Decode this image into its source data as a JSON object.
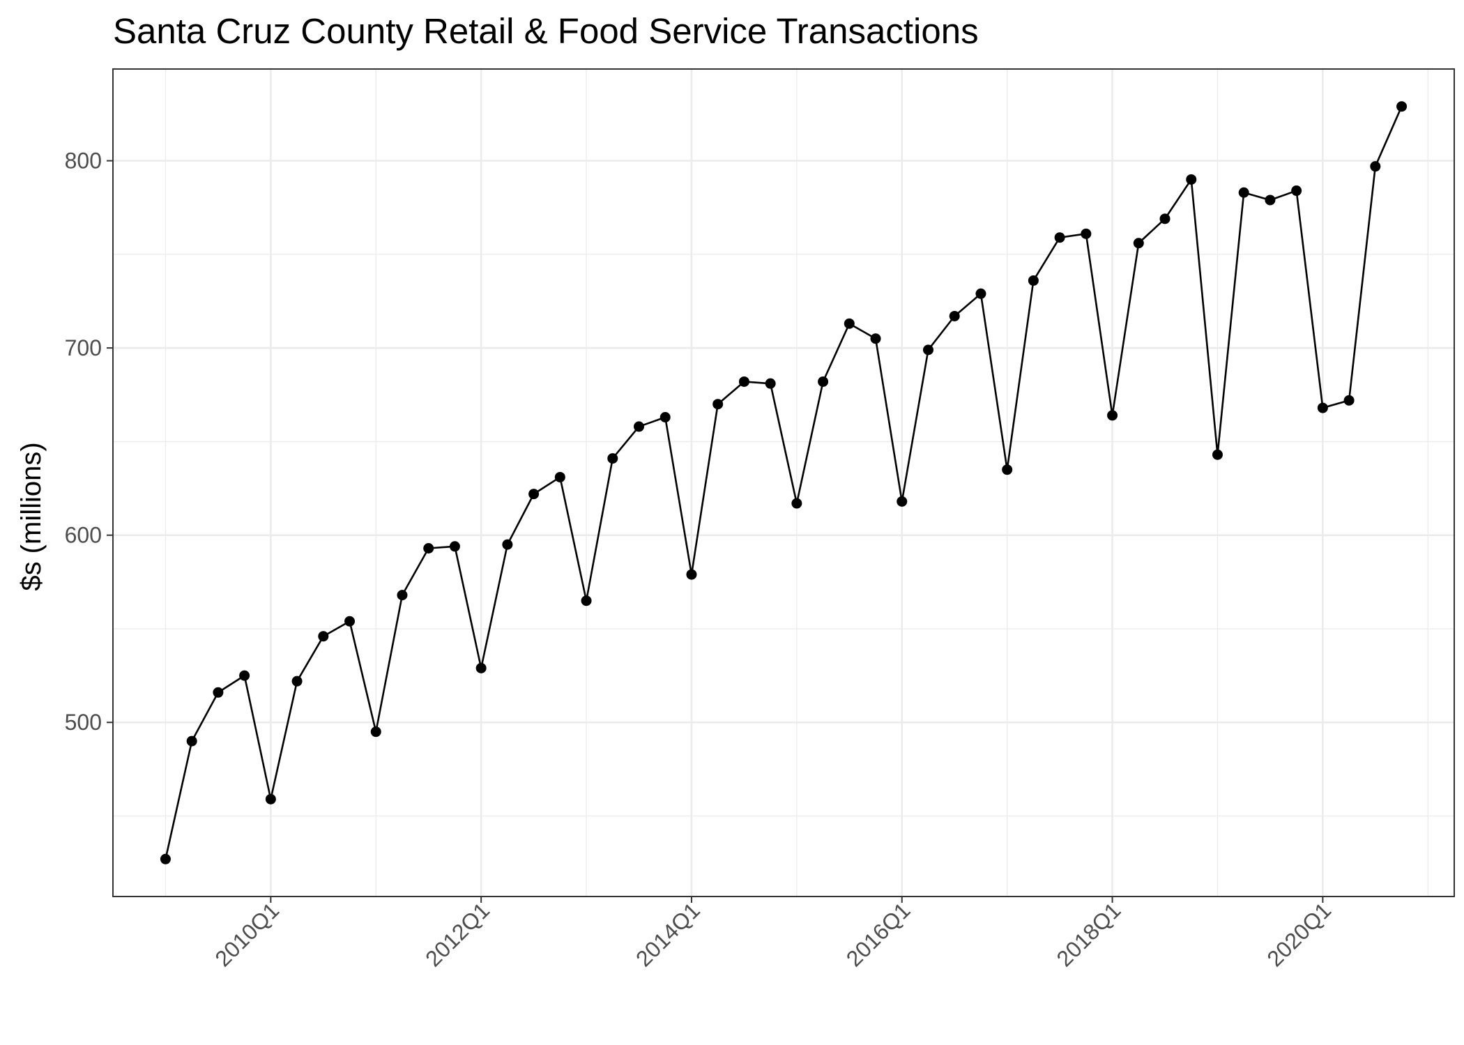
{
  "chart_data": {
    "type": "line",
    "title": "Santa Cruz County Retail & Food Service Transactions",
    "xlabel": "",
    "ylabel": "$s (millions)",
    "x_start": "2009Q1",
    "x_ticks": [
      "2010Q1",
      "2012Q1",
      "2014Q1",
      "2016Q1",
      "2018Q1",
      "2020Q1"
    ],
    "y_ticks": [
      500,
      600,
      700,
      800
    ],
    "xlim": [
      "2008Q3",
      "2021Q2"
    ],
    "ylim": [
      407,
      849
    ],
    "grid": true,
    "legend": "none",
    "line_color": "#000000",
    "series": [
      {
        "x": [
          "2009Q1",
          "2009Q2",
          "2009Q3",
          "2009Q4",
          "2010Q1",
          "2010Q2",
          "2010Q3",
          "2010Q4",
          "2011Q1",
          "2011Q2",
          "2011Q3",
          "2011Q4",
          "2012Q1",
          "2012Q2",
          "2012Q3",
          "2012Q4",
          "2013Q1",
          "2013Q2",
          "2013Q3",
          "2013Q4",
          "2014Q1",
          "2014Q2",
          "2014Q3",
          "2014Q4",
          "2015Q1",
          "2015Q2",
          "2015Q3",
          "2015Q4",
          "2016Q1",
          "2016Q2",
          "2016Q3",
          "2016Q4",
          "2017Q1",
          "2017Q2",
          "2017Q3",
          "2017Q4",
          "2018Q1",
          "2018Q2",
          "2018Q3",
          "2018Q4",
          "2019Q1",
          "2019Q2",
          "2019Q3",
          "2019Q4",
          "2020Q1",
          "2020Q2",
          "2020Q3",
          "2020Q4"
        ],
        "values": [
          427,
          490,
          516,
          525,
          459,
          522,
          546,
          554,
          495,
          568,
          593,
          594,
          529,
          595,
          622,
          631,
          565,
          641,
          658,
          663,
          579,
          670,
          682,
          681,
          617,
          682,
          713,
          705,
          618,
          699,
          717,
          729,
          635,
          736,
          759,
          761,
          664,
          756,
          769,
          790,
          643,
          783,
          779,
          784,
          668,
          672,
          797,
          829
        ]
      }
    ]
  }
}
